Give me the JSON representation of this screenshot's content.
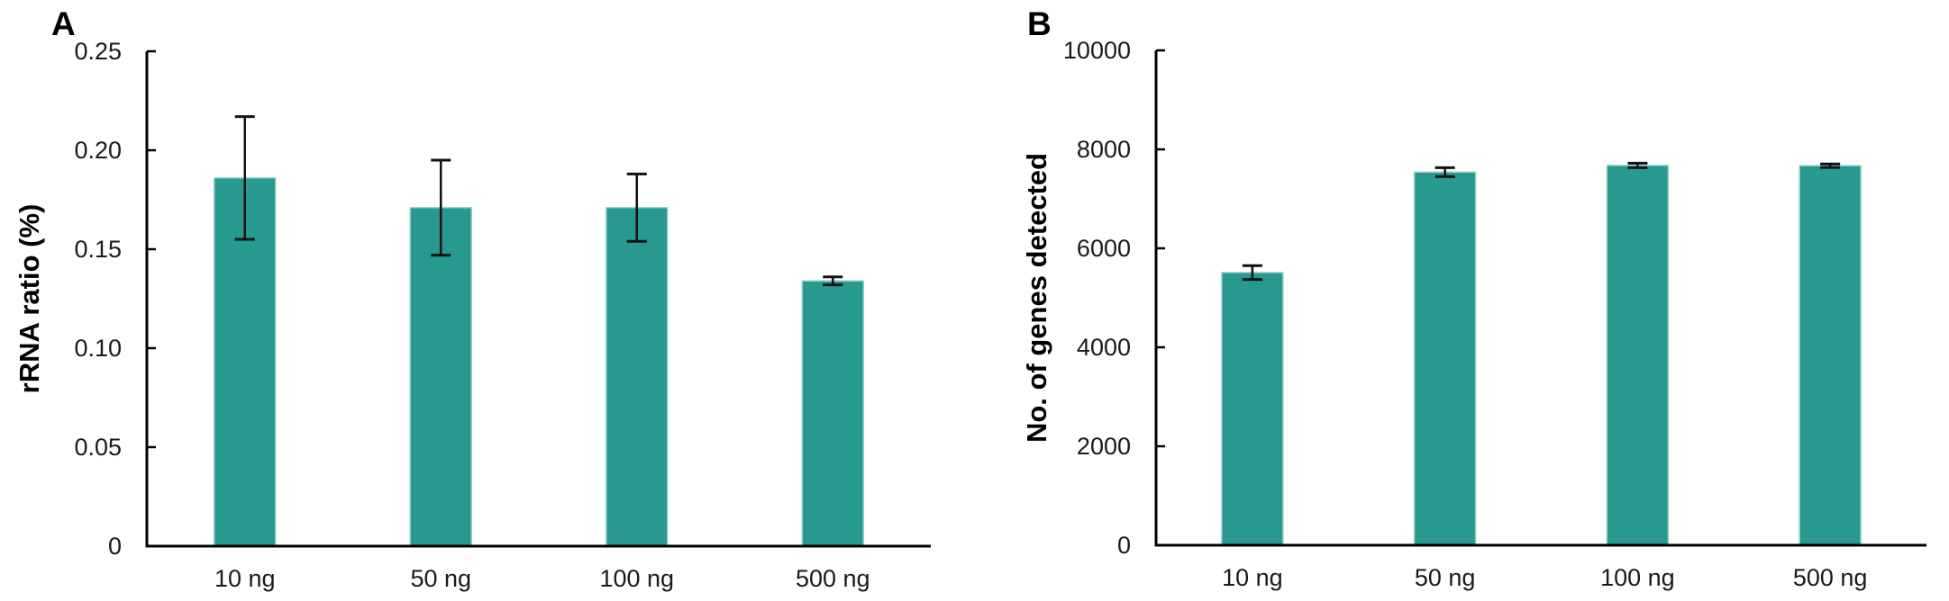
{
  "figure": {
    "background": "#ffffff",
    "description_colors": {
      "bar_fill": "#27998F",
      "bar_edge": "#96D0C9",
      "axis": "#000000",
      "error_bar": "#111111",
      "text": "#1A1A1A"
    }
  },
  "chart_data": [
    {
      "type": "bar",
      "panel_label": "A",
      "title": "",
      "xlabel": "",
      "ylabel": "rRNA ratio (%)",
      "categories": [
        "10 ng",
        "50 ng",
        "100 ng",
        "500 ng"
      ],
      "values": [
        0.186,
        0.171,
        0.171,
        0.134
      ],
      "errors": [
        0.031,
        0.024,
        0.017,
        0.002
      ],
      "ylim": [
        0,
        0.25
      ],
      "yticks": [
        0,
        0.05,
        0.1,
        0.15,
        0.2,
        0.25
      ],
      "ytick_labels": [
        "0",
        "0.05",
        "0.10",
        "0.15",
        "0.20",
        "0.25"
      ],
      "grid": false,
      "legend": null,
      "bar_color": "#27998F"
    },
    {
      "type": "bar",
      "panel_label": "B",
      "title": "",
      "xlabel": "",
      "ylabel": "No. of genes detected",
      "categories": [
        "10 ng",
        "50 ng",
        "100 ng",
        "500 ng"
      ],
      "values": [
        5510,
        7540,
        7675,
        7670
      ],
      "errors": [
        140,
        90,
        45,
        35
      ],
      "ylim": [
        0,
        10000
      ],
      "yticks": [
        0,
        2000,
        4000,
        6000,
        8000,
        10000
      ],
      "ytick_labels": [
        "0",
        "2000",
        "4000",
        "6000",
        "8000",
        "10000"
      ],
      "grid": false,
      "legend": null,
      "bar_color": "#27998F"
    }
  ]
}
